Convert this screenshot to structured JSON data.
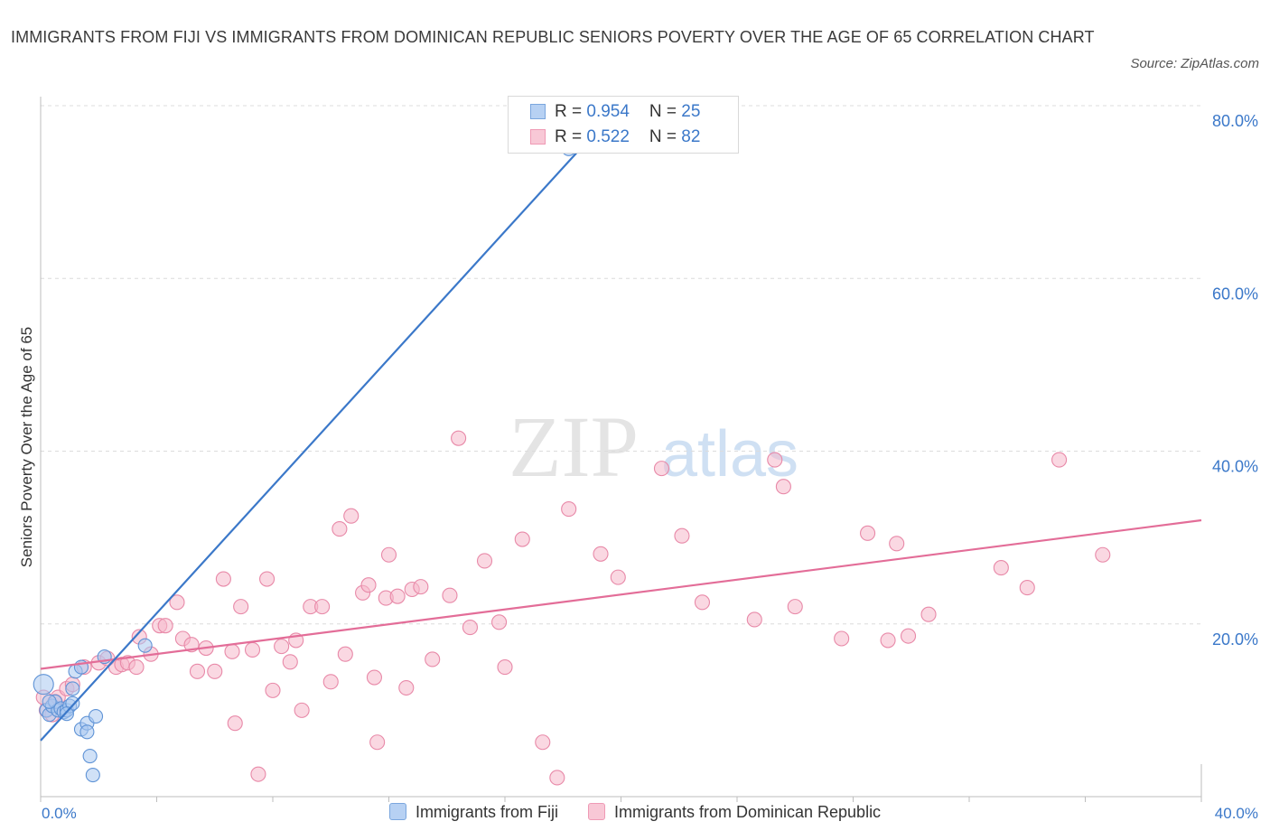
{
  "title": "IMMIGRANTS FROM FIJI VS IMMIGRANTS FROM DOMINICAN REPUBLIC SENIORS POVERTY OVER THE AGE OF 65 CORRELATION CHART",
  "source": "Source: ZipAtlas.com",
  "watermark": {
    "zip": "ZIP",
    "atlas": "atlas"
  },
  "colors": {
    "fiji": "#3b78c9",
    "fiji_fill": "#a9c8f1",
    "dominican": "#e36d98",
    "dominican_fill": "#f5b8ca",
    "axis_text": "#3b78c9"
  },
  "legend": {
    "rows": [
      {
        "r_label": "R = ",
        "r_value": "0.954",
        "n_label": "N = ",
        "n_value": "25"
      },
      {
        "r_label": "R = ",
        "r_value": "0.522",
        "n_label": "N = ",
        "n_value": "82"
      }
    ]
  },
  "chart_data": {
    "type": "scatter",
    "title": "IMMIGRANTS FROM FIJI VS IMMIGRANTS FROM DOMINICAN REPUBLIC SENIORS POVERTY OVER THE AGE OF 65 CORRELATION CHART",
    "xlabel": "",
    "ylabel": "Seniors Poverty Over the Age of 65",
    "xlim": [
      0,
      40
    ],
    "ylim": [
      0,
      80
    ],
    "x_tick_labels": [
      "0.0%",
      "40.0%"
    ],
    "y_ticks": [
      20,
      40,
      60,
      80
    ],
    "y_tick_labels": [
      "20.0%",
      "40.0%",
      "60.0%",
      "80.0%"
    ],
    "grid": true,
    "legend_position": "top-center",
    "series": [
      {
        "name": "Immigrants from Fiji",
        "R": 0.954,
        "N": 25,
        "trend": {
          "x": [
            0,
            19
          ],
          "y": [
            6.5,
            76.5
          ]
        },
        "points": [
          [
            0.1,
            13.0
          ],
          [
            0.2,
            10.0
          ],
          [
            0.3,
            9.5
          ],
          [
            0.4,
            10.5
          ],
          [
            0.5,
            11.0
          ],
          [
            0.6,
            10.0
          ],
          [
            0.7,
            10.2
          ],
          [
            0.8,
            9.8
          ],
          [
            0.9,
            10.0
          ],
          [
            1.0,
            10.5
          ],
          [
            1.1,
            12.5
          ],
          [
            1.2,
            14.5
          ],
          [
            1.4,
            15.0
          ],
          [
            1.4,
            7.8
          ],
          [
            1.6,
            8.5
          ],
          [
            1.6,
            7.5
          ],
          [
            1.7,
            4.7
          ],
          [
            1.8,
            2.5
          ],
          [
            1.9,
            9.3
          ],
          [
            2.2,
            16.2
          ],
          [
            3.6,
            17.5
          ],
          [
            0.3,
            11.0
          ],
          [
            1.1,
            10.8
          ],
          [
            0.9,
            9.6
          ],
          [
            18.2,
            75.0
          ]
        ]
      },
      {
        "name": "Immigrants from Dominican Republic",
        "R": 0.522,
        "N": 82,
        "trend": {
          "x": [
            0,
            40
          ],
          "y": [
            14.8,
            32.0
          ]
        },
        "points": [
          [
            0.1,
            11.5
          ],
          [
            0.2,
            10.0
          ],
          [
            0.4,
            9.5
          ],
          [
            0.5,
            11.0
          ],
          [
            0.6,
            11.5
          ],
          [
            0.9,
            12.5
          ],
          [
            1.1,
            13.0
          ],
          [
            1.5,
            15.0
          ],
          [
            2.0,
            15.5
          ],
          [
            2.3,
            16.0
          ],
          [
            2.6,
            15.0
          ],
          [
            2.8,
            15.3
          ],
          [
            3.0,
            15.5
          ],
          [
            3.3,
            15.0
          ],
          [
            3.4,
            18.5
          ],
          [
            3.8,
            16.5
          ],
          [
            4.1,
            19.8
          ],
          [
            4.3,
            19.8
          ],
          [
            4.7,
            22.5
          ],
          [
            4.9,
            18.3
          ],
          [
            5.2,
            17.6
          ],
          [
            5.4,
            14.5
          ],
          [
            5.7,
            17.2
          ],
          [
            6.0,
            14.5
          ],
          [
            6.3,
            25.2
          ],
          [
            6.6,
            16.8
          ],
          [
            6.7,
            8.5
          ],
          [
            6.9,
            22.0
          ],
          [
            7.3,
            17.0
          ],
          [
            7.5,
            2.6
          ],
          [
            7.8,
            25.2
          ],
          [
            8.0,
            12.3
          ],
          [
            8.3,
            17.4
          ],
          [
            8.6,
            15.6
          ],
          [
            8.8,
            18.1
          ],
          [
            9.0,
            10.0
          ],
          [
            9.3,
            22.0
          ],
          [
            9.7,
            22.0
          ],
          [
            10.0,
            13.3
          ],
          [
            10.3,
            31.0
          ],
          [
            10.5,
            16.5
          ],
          [
            10.7,
            32.5
          ],
          [
            11.1,
            23.6
          ],
          [
            11.3,
            24.5
          ],
          [
            11.5,
            13.8
          ],
          [
            11.6,
            6.3
          ],
          [
            11.9,
            23.0
          ],
          [
            12.0,
            28.0
          ],
          [
            12.3,
            23.2
          ],
          [
            12.6,
            12.6
          ],
          [
            12.8,
            24.0
          ],
          [
            13.1,
            24.3
          ],
          [
            13.5,
            15.9
          ],
          [
            14.1,
            23.3
          ],
          [
            14.4,
            41.5
          ],
          [
            14.8,
            19.6
          ],
          [
            15.3,
            27.3
          ],
          [
            15.8,
            20.2
          ],
          [
            16.0,
            15.0
          ],
          [
            16.6,
            29.8
          ],
          [
            17.3,
            6.3
          ],
          [
            17.8,
            2.2
          ],
          [
            18.2,
            33.3
          ],
          [
            19.3,
            28.1
          ],
          [
            19.9,
            25.4
          ],
          [
            21.4,
            38.0
          ],
          [
            22.1,
            30.2
          ],
          [
            22.8,
            22.5
          ],
          [
            24.6,
            20.5
          ],
          [
            25.3,
            39.0
          ],
          [
            25.6,
            35.9
          ],
          [
            26.0,
            22.0
          ],
          [
            27.6,
            18.3
          ],
          [
            28.5,
            30.5
          ],
          [
            29.2,
            18.1
          ],
          [
            29.5,
            29.3
          ],
          [
            29.9,
            18.6
          ],
          [
            30.6,
            21.1
          ],
          [
            33.1,
            26.5
          ],
          [
            34.0,
            24.2
          ],
          [
            35.1,
            39.0
          ],
          [
            36.6,
            28.0
          ]
        ]
      }
    ]
  },
  "bottom_legend": {
    "fiji": "Immigrants from Fiji",
    "dominican": "Immigrants from Dominican Republic"
  }
}
